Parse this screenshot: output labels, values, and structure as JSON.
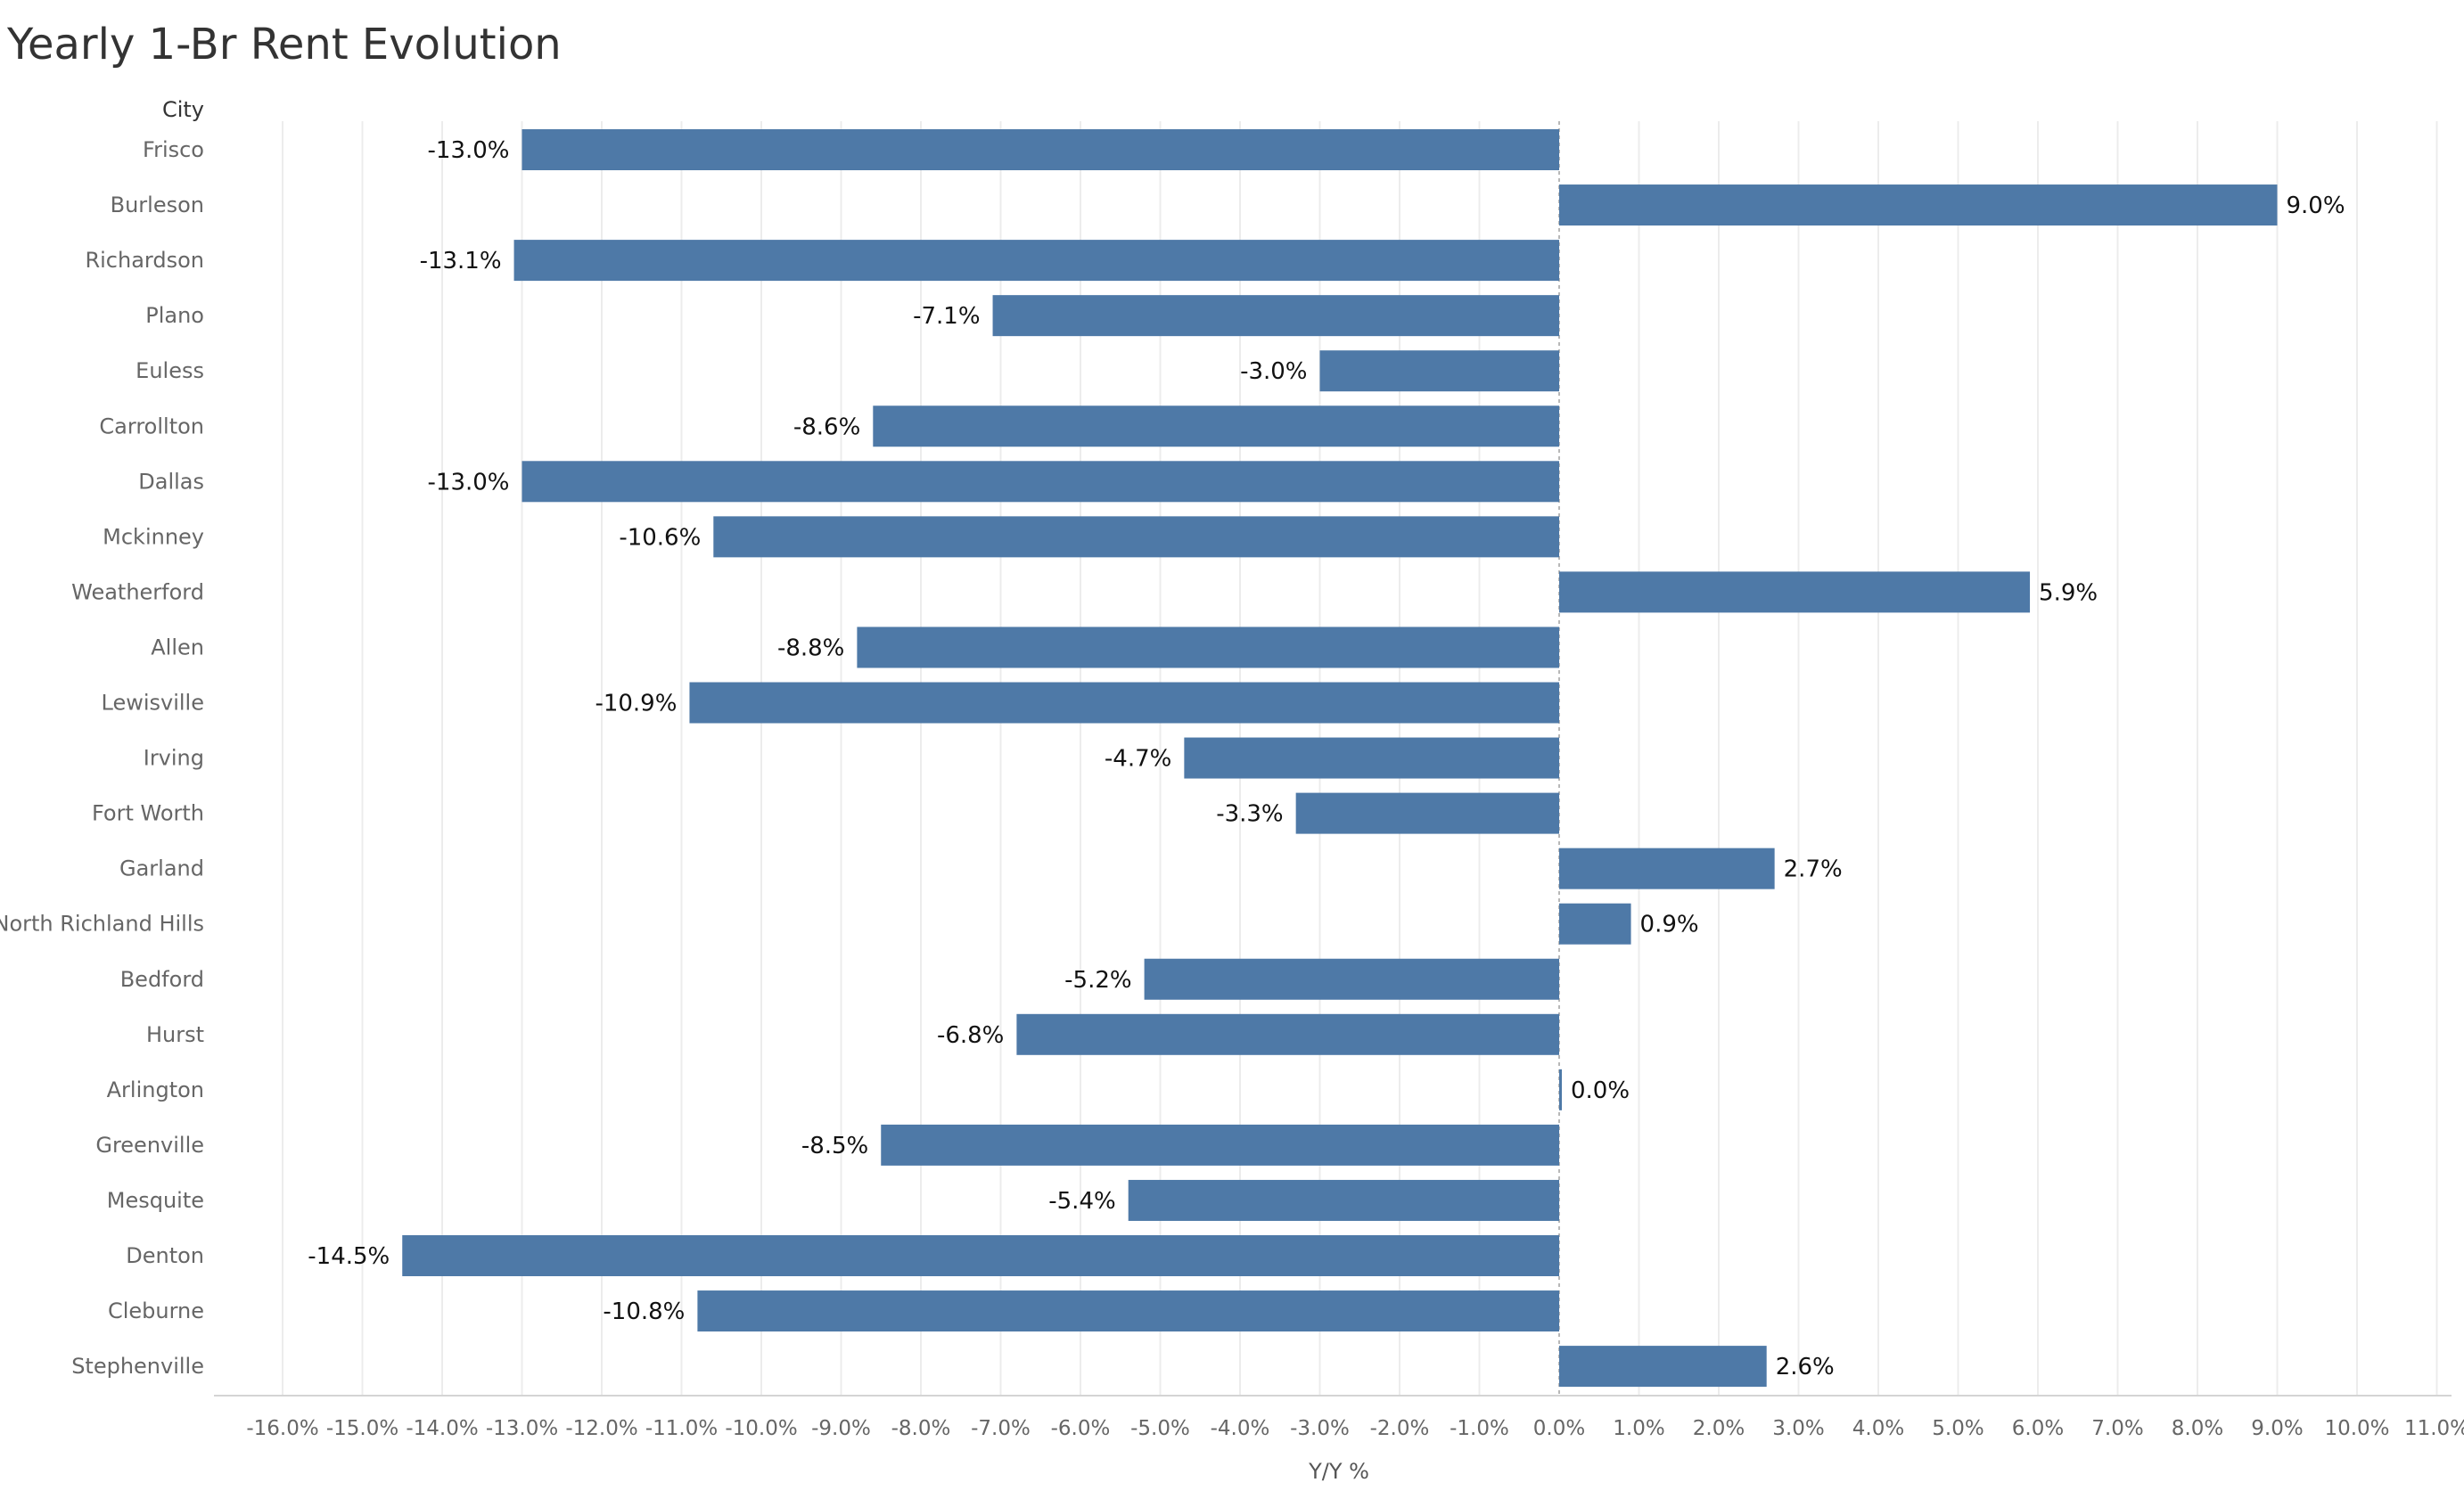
{
  "chart_data": {
    "type": "bar",
    "orientation": "horizontal",
    "title": "Yearly 1-Br Rent Evolution",
    "ylabel": "City",
    "xlabel": "Y/Y %",
    "xlim": [
      -16.8,
      11.2
    ],
    "grid": true,
    "bar_color": "#4e79a7",
    "categories": [
      "Frisco",
      "Burleson",
      "Richardson",
      "Plano",
      "Euless",
      "Carrollton",
      "Dallas",
      "Mckinney",
      "Weatherford",
      "Allen",
      "Lewisville",
      "Irving",
      "Fort Worth",
      "Garland",
      "North Richland Hills",
      "Bedford",
      "Hurst",
      "Arlington",
      "Greenville",
      "Mesquite",
      "Denton",
      "Cleburne",
      "Stephenville"
    ],
    "values": [
      -13.0,
      9.0,
      -13.1,
      -7.1,
      -3.0,
      -8.6,
      -13.0,
      -10.6,
      5.9,
      -8.8,
      -10.9,
      -4.7,
      -3.3,
      2.7,
      0.9,
      -5.2,
      -6.8,
      0.0,
      -8.5,
      -5.4,
      -14.5,
      -10.8,
      2.6
    ],
    "value_labels": [
      "-13.0%",
      "9.0%",
      "-13.1%",
      "-7.1%",
      "-3.0%",
      "-8.6%",
      "-13.0%",
      "-10.6%",
      "5.9%",
      "-8.8%",
      "-10.9%",
      "-4.7%",
      "-3.3%",
      "2.7%",
      "0.9%",
      "-5.2%",
      "-6.8%",
      "0.0%",
      "-8.5%",
      "-5.4%",
      "-14.5%",
      "-10.8%",
      "2.6%"
    ],
    "x_ticks": [
      -16,
      -15,
      -14,
      -13,
      -12,
      -11,
      -10,
      -9,
      -8,
      -7,
      -6,
      -5,
      -4,
      -3,
      -2,
      -1,
      0,
      1,
      2,
      3,
      4,
      5,
      6,
      7,
      8,
      9,
      10,
      11
    ],
    "x_tick_labels": [
      "-16.0%",
      "-15.0%",
      "-14.0%",
      "-13.0%",
      "-12.0%",
      "-11.0%",
      "-10.0%",
      "-9.0%",
      "-8.0%",
      "-7.0%",
      "-6.0%",
      "-5.0%",
      "-4.0%",
      "-3.0%",
      "-2.0%",
      "-1.0%",
      "0.0%",
      "1.0%",
      "2.0%",
      "3.0%",
      "4.0%",
      "5.0%",
      "6.0%",
      "7.0%",
      "8.0%",
      "9.0%",
      "10.0%",
      "11.0%"
    ]
  }
}
